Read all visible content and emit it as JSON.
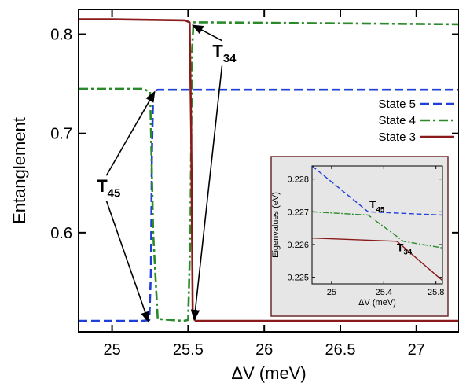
{
  "colors": {
    "state5": "#1f3fd8",
    "state4": "#2a8a2a",
    "state3": "#8b1a1a",
    "inset_bg": "#e6e6e6",
    "inset_border": "#6b2b2b"
  },
  "chart_data": [
    {
      "type": "line",
      "xlabel": "ΔV (meV)",
      "ylabel": "Entanglement",
      "xlim": [
        24.78,
        27.28
      ],
      "ylim": [
        0.5,
        0.825
      ],
      "xticks": [
        25,
        25.5,
        26,
        26.5,
        27
      ],
      "xtick_labels": [
        "25",
        "25.5",
        "26",
        "26.5",
        "27"
      ],
      "yticks": [
        0.6,
        0.7,
        0.8
      ],
      "ytick_labels": [
        "0.6",
        "0.7",
        "0.8"
      ],
      "grid": false,
      "legend": "right",
      "series": [
        {
          "name": "State 5",
          "color_key": "state5",
          "dash": "dashed",
          "x": [
            24.78,
            25.2,
            25.245,
            25.255,
            25.262,
            25.27,
            25.3,
            26.0,
            27.28
          ],
          "y": [
            0.511,
            0.511,
            0.512,
            0.56,
            0.68,
            0.742,
            0.744,
            0.744,
            0.744
          ]
        },
        {
          "name": "State 4",
          "color_key": "state4",
          "dash": "dashdot",
          "x": [
            24.78,
            25.2,
            25.25,
            25.27,
            25.3,
            25.47,
            25.5,
            25.515,
            25.525,
            25.535,
            25.6,
            27.28
          ],
          "y": [
            0.745,
            0.745,
            0.742,
            0.6,
            0.513,
            0.511,
            0.512,
            0.6,
            0.78,
            0.812,
            0.812,
            0.81
          ]
        },
        {
          "name": "State 3",
          "color_key": "state3",
          "dash": "solid",
          "x": [
            24.78,
            25.0,
            25.48,
            25.51,
            25.52,
            25.53,
            25.55,
            26.0,
            27.28
          ],
          "y": [
            0.815,
            0.815,
            0.814,
            0.812,
            0.7,
            0.52,
            0.511,
            0.511,
            0.511
          ]
        }
      ],
      "annotations": [
        {
          "main": "T",
          "sub": "45",
          "x": 24.9,
          "y": 0.641,
          "arrow_to": [
            [
              25.28,
              0.742
            ],
            [
              25.24,
              0.51
            ]
          ]
        },
        {
          "main": "T",
          "sub": "34",
          "x": 25.66,
          "y": 0.777,
          "arrow_to": [
            [
              25.53,
              0.809
            ],
            [
              25.54,
              0.512
            ]
          ]
        }
      ]
    },
    {
      "type": "line",
      "inset": true,
      "xlabel": "ΔV (meV)",
      "ylabel": "Eigenvalues (eV)",
      "xlim": [
        24.85,
        25.85
      ],
      "ylim": [
        0.2248,
        0.2284
      ],
      "xticks": [
        25,
        25.4,
        25.8
      ],
      "xtick_labels": [
        "25",
        "25.4",
        "25.8"
      ],
      "yticks": [
        0.225,
        0.226,
        0.227,
        0.228
      ],
      "ytick_labels": [
        "0.225",
        "0.226",
        "0.227",
        "0.228"
      ],
      "series": [
        {
          "color_key": "state5",
          "dash": "dashed",
          "x": [
            24.85,
            25.28,
            25.85
          ],
          "y": [
            0.2284,
            0.227,
            0.2269
          ]
        },
        {
          "color_key": "state4",
          "dash": "dashdot",
          "x": [
            24.85,
            25.28,
            25.55,
            25.85
          ],
          "y": [
            0.227,
            0.2269,
            0.2261,
            0.2259
          ]
        },
        {
          "color_key": "state3",
          "dash": "solid",
          "x": [
            24.85,
            25.5,
            25.85
          ],
          "y": [
            0.2262,
            0.2261,
            0.2249
          ]
        }
      ],
      "annotations": [
        {
          "main": "T",
          "sub": "45",
          "x": 25.29,
          "y": 0.2271
        },
        {
          "main": "T",
          "sub": "34",
          "x": 25.5,
          "y": 0.2258
        }
      ]
    }
  ]
}
